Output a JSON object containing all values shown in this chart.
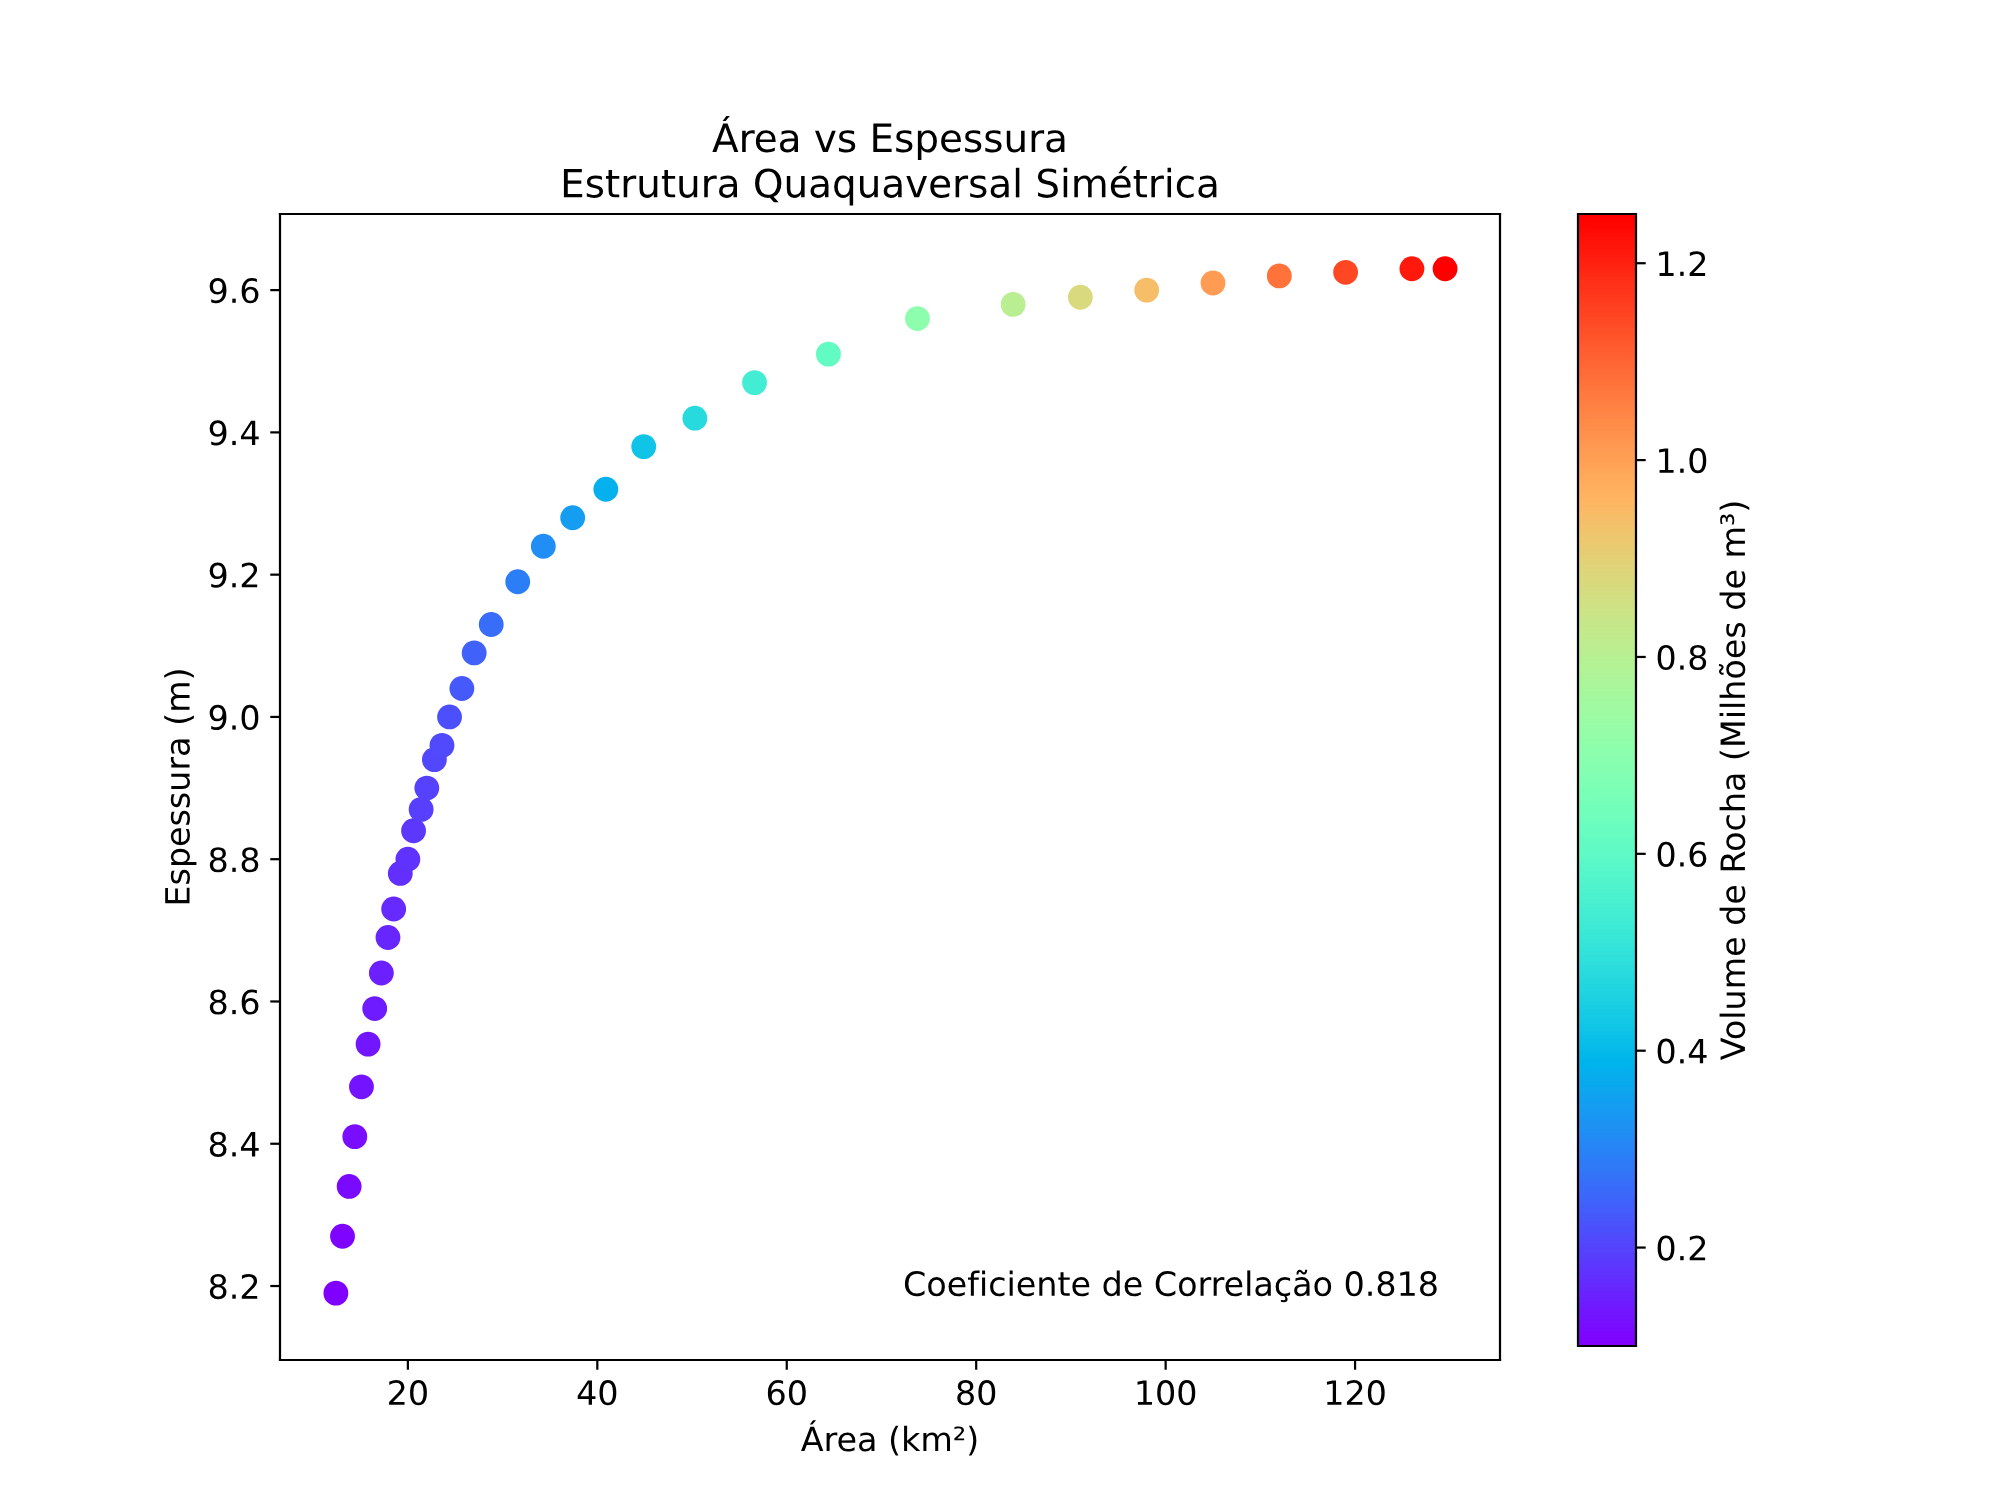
{
  "chart_data": {
    "type": "scatter",
    "title": "Área vs Espessura\nEstrutura Quaquaversal Simétrica",
    "xlabel": "Área (km²)",
    "ylabel": "Espessura (m)",
    "clabel": "Volume de Rocha (Milhões de m³)",
    "x": [
      12.4,
      13.1,
      13.8,
      14.4,
      15.1,
      15.8,
      16.5,
      17.2,
      17.9,
      18.5,
      19.2,
      20.0,
      20.6,
      21.4,
      22.0,
      22.8,
      23.6,
      24.4,
      25.7,
      27.0,
      28.8,
      31.6,
      34.3,
      37.4,
      40.9,
      44.9,
      50.3,
      56.6,
      64.4,
      73.8,
      83.9,
      91.0,
      98,
      105,
      112,
      119,
      126,
      129.5
    ],
    "values": [
      8.19,
      8.27,
      8.34,
      8.41,
      8.48,
      8.54,
      8.59,
      8.64,
      8.69,
      8.73,
      8.78,
      8.8,
      8.84,
      8.87,
      8.9,
      8.94,
      8.96,
      9.0,
      9.04,
      9.09,
      9.13,
      9.19,
      9.24,
      9.28,
      9.32,
      9.38,
      9.42,
      9.47,
      9.51,
      9.56,
      9.58,
      9.59,
      9.6,
      9.61,
      9.62,
      9.625,
      9.63,
      9.63
    ],
    "cvalues": [
      0.102,
      0.108,
      0.115,
      0.121,
      0.128,
      0.135,
      0.142,
      0.149,
      0.156,
      0.162,
      0.169,
      0.176,
      0.182,
      0.19,
      0.196,
      0.204,
      0.211,
      0.22,
      0.232,
      0.245,
      0.263,
      0.29,
      0.317,
      0.347,
      0.381,
      0.421,
      0.474,
      0.536,
      0.612,
      0.706,
      0.804,
      0.873,
      0.941,
      1.009,
      1.077,
      1.145,
      1.213,
      1.247
    ],
    "clim": [
      0.1,
      1.25
    ],
    "cticks": [
      0.2,
      0.4,
      0.6,
      0.8,
      {
        "value": 1.0,
        "label": "1.0"
      },
      1.2
    ],
    "xlim": [
      6.5,
      135.3
    ],
    "xticks": [
      20,
      40,
      60,
      80,
      100,
      120
    ],
    "ylim": [
      8.096,
      9.707
    ],
    "yticks": [
      8.2,
      8.4,
      8.6,
      8.8,
      {
        "value": 9.0,
        "label": "9.0"
      },
      9.2,
      9.4,
      9.6
    ],
    "marker": "circle",
    "grid": false,
    "annotations": [
      "Coeficiente de Correlação 0.818"
    ]
  }
}
